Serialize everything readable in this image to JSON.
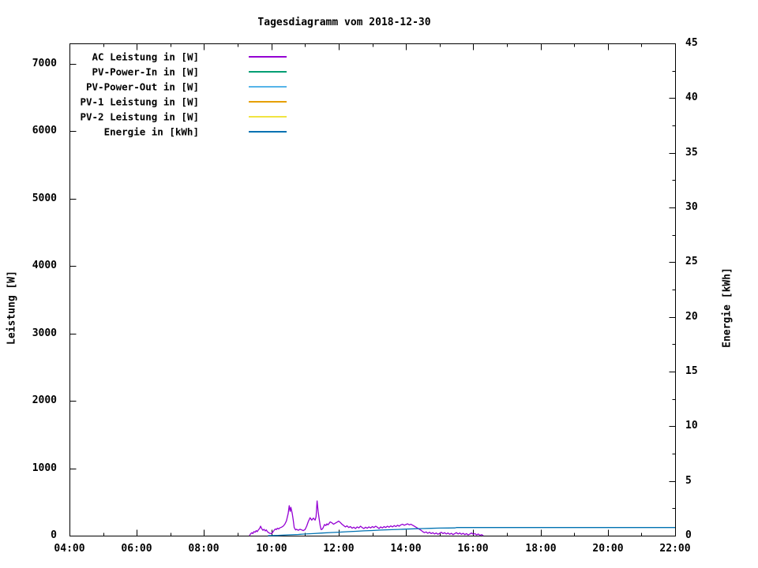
{
  "title": "Tagesdiagramm vom 2018-12-30",
  "chart_data": {
    "type": "line",
    "title": "Tagesdiagramm vom 2018-12-30",
    "xlabel": "",
    "ylabel": "Leistung [W]",
    "y2label": "Energie [kWh]",
    "x_range_hours": [
      4,
      22
    ],
    "x_ticks": [
      4,
      6,
      8,
      10,
      12,
      14,
      16,
      18,
      20,
      22
    ],
    "x_tick_labels": [
      "04:00",
      "06:00",
      "08:00",
      "10:00",
      "12:00",
      "14:00",
      "16:00",
      "18:00",
      "20:00",
      "22:00"
    ],
    "x_minor_step_hours": 1,
    "ylim": [
      0,
      7300
    ],
    "y_ticks": [
      0,
      1000,
      2000,
      3000,
      4000,
      5000,
      6000,
      7000
    ],
    "y2lim": [
      0,
      45
    ],
    "y2_ticks": [
      0,
      5,
      10,
      15,
      20,
      25,
      30,
      35,
      40,
      45
    ],
    "y2_minor_step": 2.5,
    "grid": false,
    "legend_position": "top-left-inside",
    "series": [
      {
        "name": "AC Leistung in [W]",
        "color": "#9400d3",
        "axis": "y1",
        "visible": true,
        "points": [
          [
            9.35,
            0
          ],
          [
            9.38,
            25
          ],
          [
            9.42,
            45
          ],
          [
            9.45,
            30
          ],
          [
            9.48,
            60
          ],
          [
            9.52,
            50
          ],
          [
            9.55,
            75
          ],
          [
            9.58,
            60
          ],
          [
            9.62,
            90
          ],
          [
            9.65,
            105
          ],
          [
            9.68,
            140
          ],
          [
            9.72,
            100
          ],
          [
            9.75,
            80
          ],
          [
            9.78,
            95
          ],
          [
            9.82,
            70
          ],
          [
            9.85,
            85
          ],
          [
            9.88,
            60
          ],
          [
            9.92,
            45
          ],
          [
            9.95,
            35
          ],
          [
            10.0,
            30
          ],
          [
            10.05,
            55
          ],
          [
            10.08,
            80
          ],
          [
            10.12,
            100
          ],
          [
            10.15,
            90
          ],
          [
            10.18,
            110
          ],
          [
            10.22,
            100
          ],
          [
            10.25,
            115
          ],
          [
            10.3,
            125
          ],
          [
            10.35,
            140
          ],
          [
            10.4,
            170
          ],
          [
            10.45,
            220
          ],
          [
            10.5,
            330
          ],
          [
            10.53,
            445
          ],
          [
            10.56,
            360
          ],
          [
            10.58,
            420
          ],
          [
            10.62,
            330
          ],
          [
            10.65,
            230
          ],
          [
            10.68,
            120
          ],
          [
            10.72,
            85
          ],
          [
            10.75,
            95
          ],
          [
            10.8,
            80
          ],
          [
            10.85,
            95
          ],
          [
            10.9,
            85
          ],
          [
            10.95,
            75
          ],
          [
            11.0,
            90
          ],
          [
            11.05,
            140
          ],
          [
            11.1,
            210
          ],
          [
            11.15,
            265
          ],
          [
            11.2,
            230
          ],
          [
            11.25,
            260
          ],
          [
            11.3,
            230
          ],
          [
            11.33,
            280
          ],
          [
            11.36,
            515
          ],
          [
            11.39,
            360
          ],
          [
            11.42,
            250
          ],
          [
            11.45,
            150
          ],
          [
            11.48,
            90
          ],
          [
            11.52,
            100
          ],
          [
            11.55,
            130
          ],
          [
            11.58,
            165
          ],
          [
            11.62,
            150
          ],
          [
            11.65,
            175
          ],
          [
            11.68,
            160
          ],
          [
            11.72,
            185
          ],
          [
            11.75,
            205
          ],
          [
            11.8,
            190
          ],
          [
            11.85,
            170
          ],
          [
            11.9,
            185
          ],
          [
            11.95,
            200
          ],
          [
            12.0,
            215
          ],
          [
            12.05,
            195
          ],
          [
            12.1,
            170
          ],
          [
            12.15,
            150
          ],
          [
            12.2,
            130
          ],
          [
            12.25,
            145
          ],
          [
            12.3,
            120
          ],
          [
            12.35,
            135
          ],
          [
            12.4,
            110
          ],
          [
            12.45,
            125
          ],
          [
            12.5,
            105
          ],
          [
            12.55,
            130
          ],
          [
            12.6,
            115
          ],
          [
            12.65,
            140
          ],
          [
            12.7,
            120
          ],
          [
            12.75,
            105
          ],
          [
            12.8,
            125
          ],
          [
            12.85,
            110
          ],
          [
            12.9,
            130
          ],
          [
            12.95,
            115
          ],
          [
            13.0,
            135
          ],
          [
            13.05,
            120
          ],
          [
            13.1,
            140
          ],
          [
            13.15,
            125
          ],
          [
            13.2,
            105
          ],
          [
            13.25,
            130
          ],
          [
            13.3,
            115
          ],
          [
            13.35,
            135
          ],
          [
            13.4,
            120
          ],
          [
            13.45,
            140
          ],
          [
            13.5,
            125
          ],
          [
            13.55,
            145
          ],
          [
            13.6,
            130
          ],
          [
            13.65,
            150
          ],
          [
            13.7,
            135
          ],
          [
            13.75,
            155
          ],
          [
            13.8,
            140
          ],
          [
            13.85,
            160
          ],
          [
            13.9,
            170
          ],
          [
            13.95,
            155
          ],
          [
            14.0,
            165
          ],
          [
            14.05,
            175
          ],
          [
            14.1,
            160
          ],
          [
            14.15,
            170
          ],
          [
            14.2,
            155
          ],
          [
            14.25,
            140
          ],
          [
            14.3,
            125
          ],
          [
            14.35,
            110
          ],
          [
            14.4,
            95
          ],
          [
            14.45,
            80
          ],
          [
            14.5,
            60
          ],
          [
            14.55,
            45
          ],
          [
            14.6,
            55
          ],
          [
            14.65,
            35
          ],
          [
            14.7,
            50
          ],
          [
            14.75,
            30
          ],
          [
            14.8,
            45
          ],
          [
            14.85,
            25
          ],
          [
            14.9,
            40
          ],
          [
            14.95,
            20
          ],
          [
            15.0,
            35
          ],
          [
            15.05,
            50
          ],
          [
            15.1,
            30
          ],
          [
            15.15,
            45
          ],
          [
            15.2,
            25
          ],
          [
            15.25,
            40
          ],
          [
            15.3,
            20
          ],
          [
            15.35,
            35
          ],
          [
            15.4,
            15
          ],
          [
            15.45,
            30
          ],
          [
            15.5,
            45
          ],
          [
            15.55,
            25
          ],
          [
            15.6,
            40
          ],
          [
            15.65,
            20
          ],
          [
            15.7,
            35
          ],
          [
            15.75,
            15
          ],
          [
            15.8,
            30
          ],
          [
            15.85,
            10
          ],
          [
            15.9,
            25
          ],
          [
            15.95,
            40
          ],
          [
            16.0,
            20
          ],
          [
            16.05,
            30
          ],
          [
            16.1,
            10
          ],
          [
            16.15,
            25
          ],
          [
            16.2,
            5
          ],
          [
            16.25,
            15
          ],
          [
            16.3,
            0
          ]
        ]
      },
      {
        "name": "PV-Power-In in [W]",
        "color": "#009e73",
        "axis": "y1",
        "visible": false,
        "points": []
      },
      {
        "name": "PV-Power-Out in [W]",
        "color": "#56b4e9",
        "axis": "y1",
        "visible": false,
        "points": []
      },
      {
        "name": "PV-1 Leistung in [W]",
        "color": "#e69f00",
        "axis": "y1",
        "visible": false,
        "points": []
      },
      {
        "name": "PV-2 Leistung in [W]",
        "color": "#f0e442",
        "axis": "y1",
        "visible": false,
        "points": []
      },
      {
        "name": "Energie in [kWh]",
        "color": "#0072b2",
        "axis": "y2",
        "visible": true,
        "points": [
          [
            9.9,
            0
          ],
          [
            10.2,
            0.02
          ],
          [
            10.5,
            0.07
          ],
          [
            10.8,
            0.11
          ],
          [
            11.0,
            0.15
          ],
          [
            11.25,
            0.19
          ],
          [
            11.5,
            0.24
          ],
          [
            11.75,
            0.28
          ],
          [
            12.0,
            0.32
          ],
          [
            12.25,
            0.36
          ],
          [
            12.5,
            0.4
          ],
          [
            12.75,
            0.44
          ],
          [
            13.0,
            0.47
          ],
          [
            13.25,
            0.51
          ],
          [
            13.5,
            0.54
          ],
          [
            13.75,
            0.57
          ],
          [
            14.0,
            0.6
          ],
          [
            14.25,
            0.63
          ],
          [
            14.5,
            0.65
          ],
          [
            14.75,
            0.67
          ],
          [
            15.0,
            0.69
          ],
          [
            15.25,
            0.7
          ],
          [
            15.45,
            0.71
          ],
          [
            15.5,
            0.74
          ],
          [
            16.0,
            0.74
          ],
          [
            17.0,
            0.74
          ],
          [
            18.0,
            0.74
          ],
          [
            19.0,
            0.74
          ],
          [
            20.0,
            0.74
          ],
          [
            21.0,
            0.74
          ],
          [
            22.0,
            0.74
          ]
        ]
      }
    ]
  }
}
